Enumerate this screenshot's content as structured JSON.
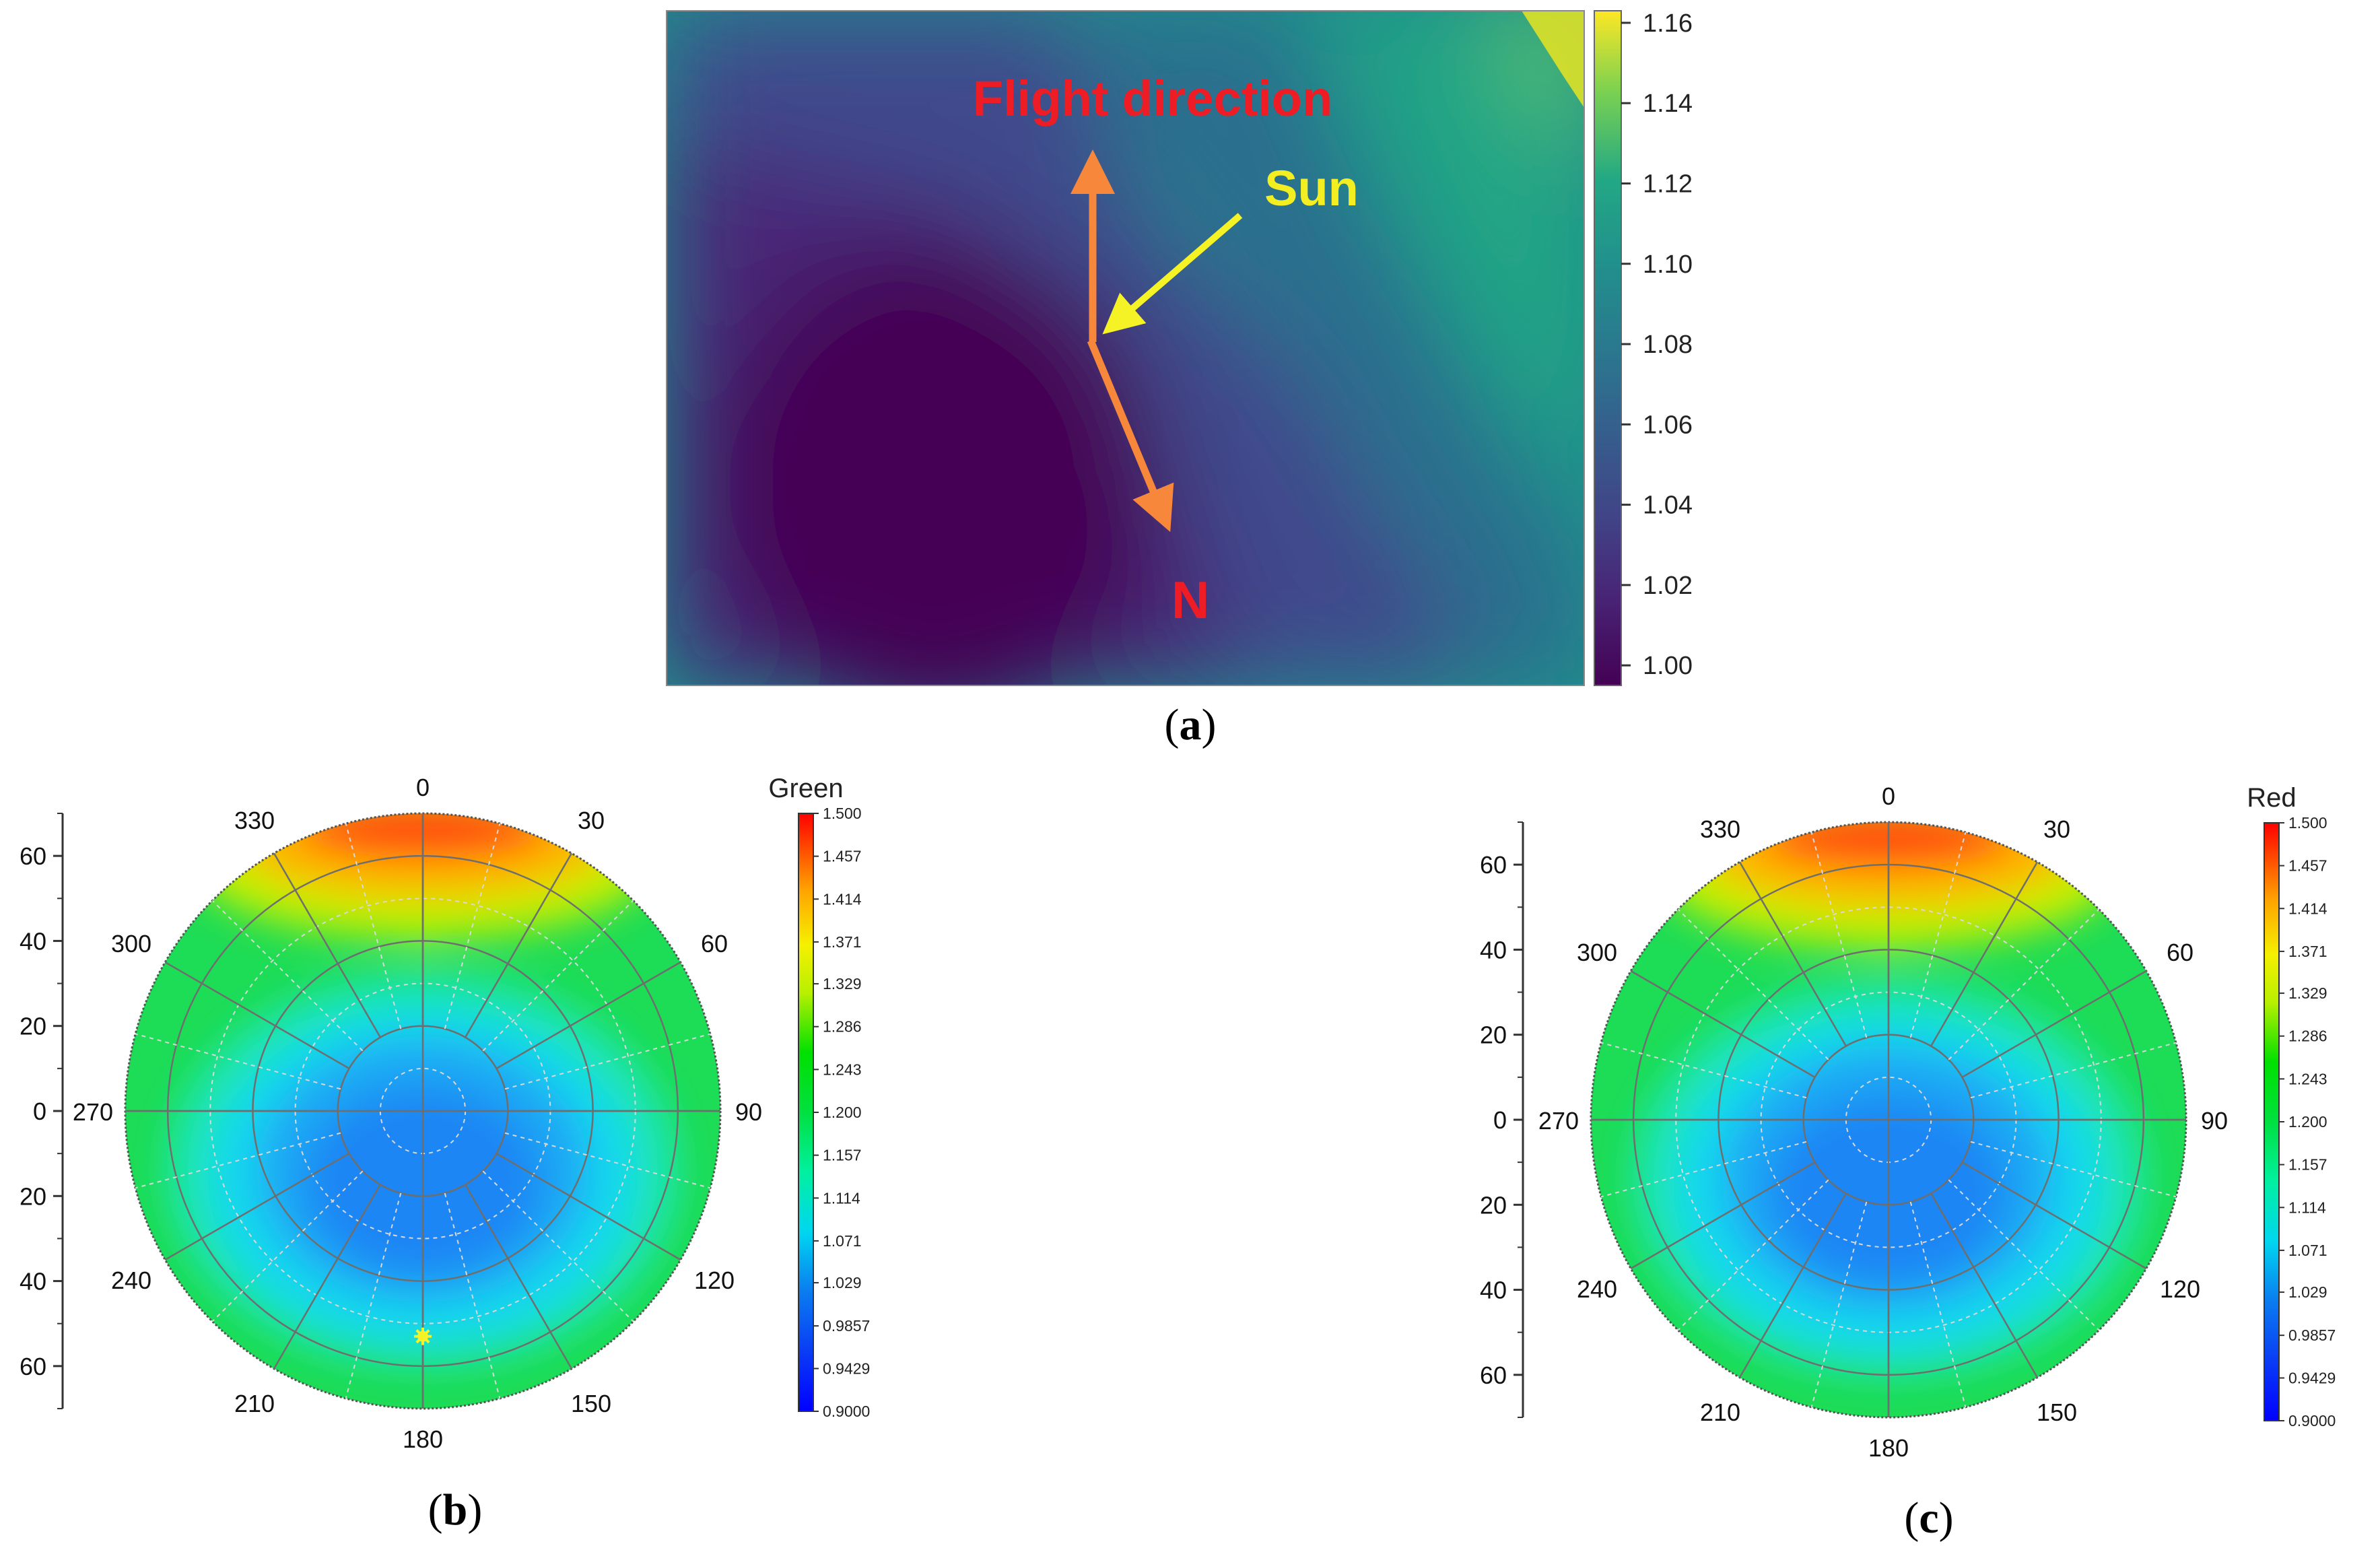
{
  "chart_data": [
    {
      "type": "heatmap",
      "panel": "a",
      "caption_letter": "a",
      "colormap": "viridis",
      "colorbar_ticks": [
        "1.16",
        "1.14",
        "1.12",
        "1.10",
        "1.08",
        "1.06",
        "1.04",
        "1.02",
        "1.00"
      ],
      "colorbar_range": [
        0.995,
        1.163
      ],
      "annotations": {
        "flight_direction": "Flight direction",
        "sun": "Sun",
        "north": "N"
      },
      "colors": {
        "flight_text": "#ee1c25",
        "sun_text": "#f2ee22",
        "north_text": "#ee1c25",
        "flight_arrow": "#f7883b",
        "sun_arrow": "#f5f226"
      }
    },
    {
      "type": "heatmap",
      "subtype": "polar",
      "panel": "b",
      "caption_letter": "b",
      "colorbar_title": "Green",
      "colorbar_ticks": [
        "1.500",
        "1.457",
        "1.414",
        "1.371",
        "1.329",
        "1.286",
        "1.243",
        "1.200",
        "1.157",
        "1.114",
        "1.071",
        "1.029",
        "0.9857",
        "0.9429",
        "0.9000"
      ],
      "colorbar_range": [
        0.9,
        1.5
      ],
      "azimuth_labels": [
        "0",
        "30",
        "60",
        "90",
        "120",
        "150",
        "180",
        "210",
        "240",
        "270",
        "300",
        "330"
      ],
      "radial_axis_labels": [
        "60",
        "40",
        "20",
        "0",
        "20",
        "40",
        "60"
      ],
      "radial_range": [
        0,
        70
      ],
      "sun_marker": {
        "azimuth": 180,
        "zenith": 53,
        "color": "#f5f226"
      }
    },
    {
      "type": "heatmap",
      "subtype": "polar",
      "panel": "c",
      "caption_letter": "c",
      "colorbar_title": "Red",
      "colorbar_ticks": [
        "1.500",
        "1.457",
        "1.414",
        "1.371",
        "1.329",
        "1.286",
        "1.243",
        "1.200",
        "1.157",
        "1.114",
        "1.071",
        "1.029",
        "0.9857",
        "0.9429",
        "0.9000"
      ],
      "colorbar_range": [
        0.9,
        1.5
      ],
      "azimuth_labels": [
        "0",
        "30",
        "60",
        "90",
        "120",
        "150",
        "180",
        "210",
        "240",
        "270",
        "300",
        "330"
      ],
      "radial_axis_labels": [
        "60",
        "40",
        "20",
        "0",
        "20",
        "40",
        "60"
      ],
      "radial_range": [
        0,
        70
      ]
    }
  ]
}
